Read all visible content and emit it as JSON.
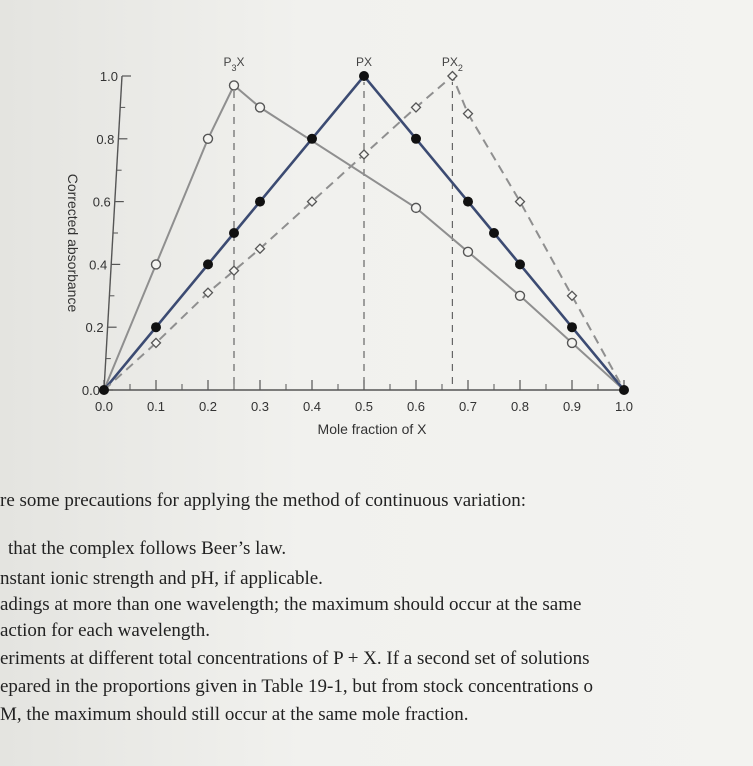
{
  "chart_data": {
    "type": "line",
    "xlabel": "Mole fraction of X",
    "ylabel": "Corrected absorbance",
    "xlim": [
      0.0,
      1.0
    ],
    "ylim": [
      0.0,
      1.0
    ],
    "x_ticks": [
      "0.0",
      "0.1",
      "0.2",
      "0.3",
      "0.4",
      "0.5",
      "0.6",
      "0.7",
      "0.8",
      "0.9",
      "1.0"
    ],
    "y_ticks": [
      "0.0",
      "0.2",
      "0.4",
      "0.6",
      "0.8",
      "1.0"
    ],
    "series": [
      {
        "name": "P3X",
        "style": "solid-gray-open-circle",
        "color": "#8f8f8f",
        "x": [
          0.0,
          0.1,
          0.2,
          0.25,
          0.3,
          0.6,
          0.7,
          0.8,
          0.9,
          1.0
        ],
        "y": [
          0.0,
          0.4,
          0.8,
          0.97,
          0.9,
          0.58,
          0.44,
          0.3,
          0.15,
          0.0
        ]
      },
      {
        "name": "PX",
        "style": "solid-blue-filled-circle",
        "color": "#3c4b72",
        "x": [
          0.0,
          0.1,
          0.2,
          0.25,
          0.3,
          0.4,
          0.5,
          0.6,
          0.7,
          0.75,
          0.8,
          0.9,
          1.0
        ],
        "y": [
          0.0,
          0.2,
          0.4,
          0.5,
          0.6,
          0.8,
          1.0,
          0.8,
          0.6,
          0.5,
          0.4,
          0.2,
          0.0
        ]
      },
      {
        "name": "PX2",
        "style": "dashed-gray-open-diamond",
        "color": "#8f8f8f",
        "x": [
          0.0,
          0.1,
          0.2,
          0.25,
          0.3,
          0.4,
          0.5,
          0.6,
          0.67,
          0.7,
          0.8,
          0.9,
          1.0
        ],
        "y": [
          0.0,
          0.15,
          0.31,
          0.38,
          0.45,
          0.6,
          0.75,
          0.9,
          1.0,
          0.88,
          0.6,
          0.3,
          0.0
        ]
      }
    ],
    "annotations": [
      {
        "label": "P",
        "sub": "3",
        "tail": "X",
        "x": 0.25
      },
      {
        "label": "PX",
        "sub": "",
        "tail": "",
        "x": 0.5
      },
      {
        "label": "PX",
        "sub": "2",
        "tail": "",
        "x": 0.67
      }
    ]
  },
  "text_lines": [
    "re some precautions for applying the method of continuous variation:",
    "that the complex follows Beer’s law.",
    "nstant ionic strength and pH, if applicable.",
    "adings at more than one wavelength; the maximum should occur at the same",
    "action for each wavelength.",
    "eriments at different total concentrations of P + X. If a second set of solutions",
    "epared in the proportions given in Table 19-1, but from stock concentrations o",
    "M, the maximum should still occur at the same mole fraction."
  ]
}
